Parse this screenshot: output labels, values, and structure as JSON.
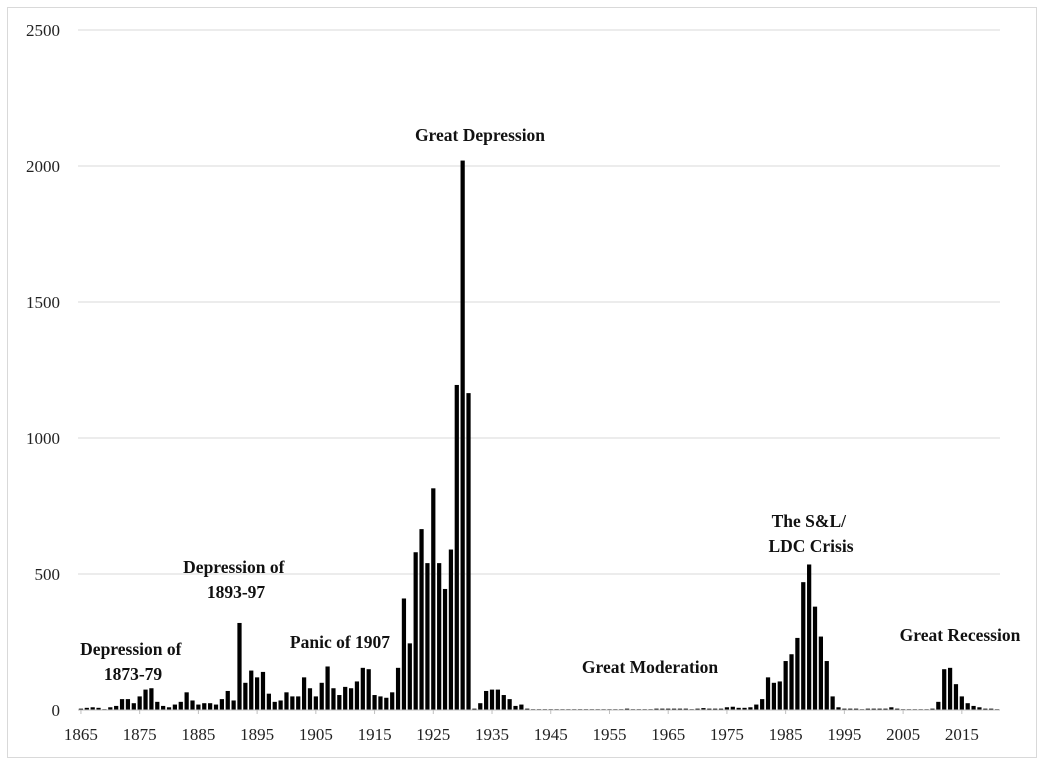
{
  "chart_data": {
    "type": "bar",
    "title": "",
    "xlabel": "",
    "ylabel": "",
    "ylim": [
      0,
      2500
    ],
    "yticks": [
      "0",
      "500",
      "1000",
      "1500",
      "2000",
      "2500"
    ],
    "xticks": [
      "1865",
      "1875",
      "1885",
      "1895",
      "1905",
      "1915",
      "1925",
      "1935",
      "1945",
      "1955",
      "1965",
      "1975",
      "1985",
      "1995",
      "2005",
      "2015"
    ],
    "grid": true,
    "legend": "none",
    "colors": {
      "bar": "#000000",
      "grid": "#d9d9d9",
      "axis": "#bfbfbf"
    },
    "year_start": 1865,
    "year_end": 2018,
    "values": [
      5,
      8,
      10,
      8,
      3,
      10,
      15,
      40,
      40,
      25,
      50,
      75,
      80,
      30,
      15,
      10,
      20,
      30,
      65,
      35,
      20,
      25,
      25,
      20,
      40,
      70,
      35,
      320,
      100,
      145,
      120,
      140,
      60,
      30,
      35,
      65,
      50,
      50,
      120,
      80,
      50,
      100,
      160,
      80,
      55,
      85,
      80,
      105,
      155,
      150,
      55,
      50,
      45,
      65,
      155,
      410,
      245,
      580,
      665,
      540,
      815,
      540,
      445,
      590,
      1195,
      2020,
      1165,
      5,
      25,
      70,
      75,
      75,
      55,
      40,
      15,
      20,
      5,
      3,
      3,
      3,
      3,
      3,
      2,
      2,
      2,
      3,
      3,
      2,
      2,
      2,
      2,
      2,
      2,
      5,
      3,
      3,
      3,
      3,
      5,
      5,
      5,
      5,
      5,
      5,
      3,
      5,
      7,
      5,
      5,
      5,
      10,
      12,
      8,
      8,
      10,
      20,
      40,
      120,
      100,
      105,
      180,
      205,
      265,
      470,
      535,
      380,
      270,
      180,
      50,
      10,
      5,
      5,
      5,
      2,
      5,
      5,
      5,
      5,
      10,
      5,
      3,
      2,
      2,
      2,
      2,
      5,
      30,
      150,
      155,
      95,
      50,
      25,
      15,
      10,
      5,
      5,
      3
    ],
    "annotations": [
      {
        "lines": [
          "Depression of",
          "1873-79"
        ]
      },
      {
        "lines": [
          "Depression of",
          "1893-97"
        ]
      },
      {
        "lines": [
          "Panic of 1907"
        ]
      },
      {
        "lines": [
          "Great Depression"
        ]
      },
      {
        "lines": [
          "Great Moderation"
        ]
      },
      {
        "lines": [
          "The S&L/",
          "LDC Crisis"
        ]
      },
      {
        "lines": [
          "Great Recession"
        ]
      }
    ]
  }
}
